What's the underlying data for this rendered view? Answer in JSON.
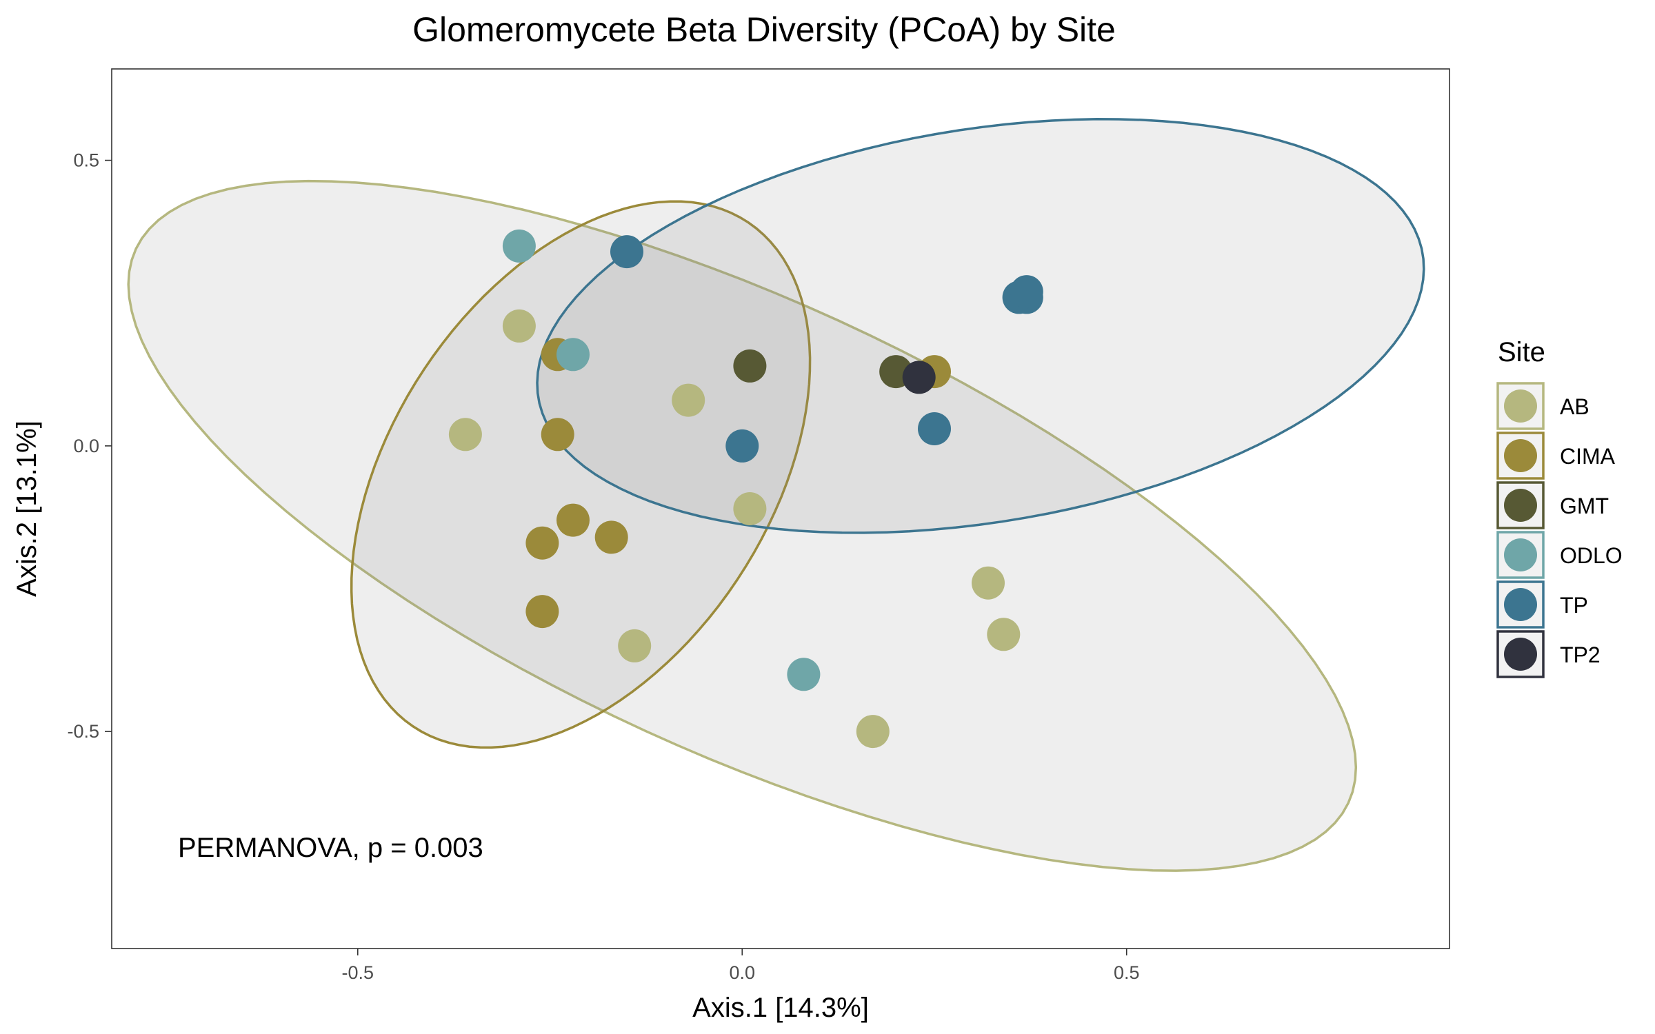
{
  "chart_data": {
    "type": "scatter",
    "title": "Glomeromycete Beta Diversity (PCoA) by Site",
    "xlabel": "Axis.1   [14.3%]",
    "ylabel": "Axis.2   [13.1%]",
    "xlim": [
      -0.82,
      0.92
    ],
    "ylim": [
      -0.88,
      0.66
    ],
    "x_ticks": [
      {
        "value": -0.5,
        "label": "-0.5"
      },
      {
        "value": 0.0,
        "label": "0.0"
      },
      {
        "value": 0.5,
        "label": "0.5"
      }
    ],
    "y_ticks": [
      {
        "value": 0.5,
        "label": "0.5"
      },
      {
        "value": 0.0,
        "label": "0.0"
      },
      {
        "value": -0.5,
        "label": "-0.5"
      }
    ],
    "grid": false,
    "legend": {
      "title": "Site",
      "placement": "right"
    },
    "annotation": "PERMANOVA, p = 0.003",
    "series": [
      {
        "name": "AB",
        "color": "#b5b77f",
        "points": [
          {
            "x": -0.29,
            "y": 0.21
          },
          {
            "x": -0.36,
            "y": 0.02
          },
          {
            "x": -0.07,
            "y": 0.08
          },
          {
            "x": 0.01,
            "y": -0.11
          },
          {
            "x": -0.14,
            "y": -0.35
          },
          {
            "x": 0.32,
            "y": -0.24
          },
          {
            "x": 0.34,
            "y": -0.33
          },
          {
            "x": 0.17,
            "y": -0.5
          }
        ]
      },
      {
        "name": "CIMA",
        "color": "#9b8a3a",
        "points": [
          {
            "x": -0.24,
            "y": 0.16
          },
          {
            "x": -0.24,
            "y": 0.02
          },
          {
            "x": -0.22,
            "y": -0.13
          },
          {
            "x": -0.26,
            "y": -0.17
          },
          {
            "x": -0.17,
            "y": -0.16
          },
          {
            "x": -0.26,
            "y": -0.29
          },
          {
            "x": 0.25,
            "y": 0.13
          }
        ]
      },
      {
        "name": "GMT",
        "color": "#575934",
        "points": [
          {
            "x": 0.01,
            "y": 0.14
          },
          {
            "x": 0.2,
            "y": 0.13
          }
        ]
      },
      {
        "name": "ODLO",
        "color": "#6fa6a8",
        "points": [
          {
            "x": -0.29,
            "y": 0.35
          },
          {
            "x": -0.22,
            "y": 0.16
          },
          {
            "x": 0.08,
            "y": -0.4
          }
        ]
      },
      {
        "name": "TP",
        "color": "#3c7590",
        "points": [
          {
            "x": -0.15,
            "y": 0.34
          },
          {
            "x": 0.36,
            "y": 0.26
          },
          {
            "x": 0.37,
            "y": 0.26
          },
          {
            "x": 0.37,
            "y": 0.27
          },
          {
            "x": 0.0,
            "y": 0.0
          },
          {
            "x": 0.25,
            "y": 0.03
          }
        ]
      },
      {
        "name": "TP2",
        "color": "#30323e",
        "points": [
          {
            "x": 0.23,
            "y": 0.12
          }
        ]
      }
    ],
    "ellipses": [
      {
        "series": "AB",
        "color": "#b5b77f",
        "cx": 0.0,
        "cy": -0.14,
        "semi_major": 0.93,
        "semi_minor": 0.37,
        "angle_deg": -34,
        "fill": "#e9e9e9"
      },
      {
        "series": "CIMA",
        "color": "#9b8a3a",
        "cx": -0.21,
        "cy": -0.05,
        "semi_major": 0.5,
        "semi_minor": 0.26,
        "angle_deg": 70,
        "fill": "#d0d0d0"
      },
      {
        "series": "TP",
        "color": "#3c7590",
        "cx": 0.31,
        "cy": 0.21,
        "semi_major": 0.59,
        "semi_minor": 0.34,
        "angle_deg": 15,
        "fill": "#e9e9e9"
      }
    ]
  }
}
